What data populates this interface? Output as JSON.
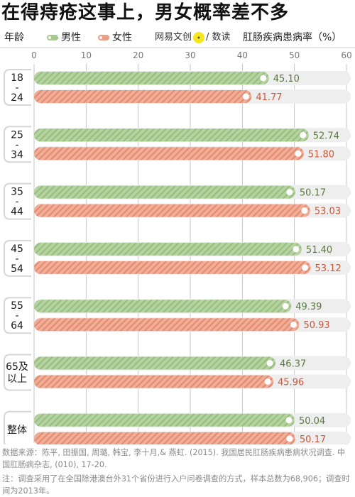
{
  "title": "在得痔疮这事上，男女概率差不多",
  "header": {
    "age_label": "年龄",
    "legend": [
      {
        "label": "男性",
        "color": "#a7c98e"
      },
      {
        "label": "女性",
        "color": "#eb9e85"
      }
    ],
    "brand_text": "网易文创",
    "brand_icon": "lemon-logo",
    "brand_suffix": "/ 数读",
    "metric_label": "肛肠疾病患病率（%）"
  },
  "chart_data": {
    "type": "bar",
    "orientation": "horizontal",
    "xlim": [
      0,
      60
    ],
    "x_ticks": [
      "0",
      "10",
      "20",
      "30",
      "40",
      "50",
      "60"
    ],
    "categories": [
      "18-24",
      "25-34",
      "35-44",
      "45-54",
      "55-64",
      "65及以上",
      "整体"
    ],
    "category_labels": [
      [
        "18",
        "-",
        "24"
      ],
      [
        "25",
        "-",
        "34"
      ],
      [
        "35",
        "-",
        "44"
      ],
      [
        "45",
        "-",
        "54"
      ],
      [
        "55",
        "-",
        "64"
      ],
      [
        "65及",
        "以上"
      ],
      [
        "整体"
      ]
    ],
    "series": [
      {
        "name": "男性",
        "values": [
          45.1,
          52.74,
          50.17,
          51.4,
          49.39,
          46.37,
          50.04
        ],
        "labels": [
          "45.10",
          "52.74",
          "50.17",
          "51.40",
          "49.39",
          "46.37",
          "50.04"
        ]
      },
      {
        "name": "女性",
        "values": [
          41.77,
          51.8,
          53.03,
          53.12,
          50.93,
          45.96,
          50.17
        ],
        "labels": [
          "41.77",
          "51.80",
          "53.03",
          "53.12",
          "50.93",
          "45.96",
          "50.17"
        ]
      }
    ],
    "colors": {
      "male_bar": "#b5d3a0",
      "male_stripe": "#97bd7d",
      "male_text": "#5a7a3c",
      "female_bar": "#f0ad98",
      "female_stripe": "#e38a6d",
      "female_text": "#c8593a",
      "track": "#eeeeee",
      "grid": "#b8b8b8"
    },
    "grid": true
  },
  "footer": {
    "source": "数据来源：陈平, 田振国, 周璐, 韩宝, 李十月,& 燕虹. (2015). 我国居民肛肠疾病患病状况调查. 中国肛肠病杂志, (010), 17-20.",
    "note": "注：调查采用了在全国除港澳台外31个省份进行入户问卷调查的方式，样本总数为68,906；调查时间为2013年。"
  }
}
